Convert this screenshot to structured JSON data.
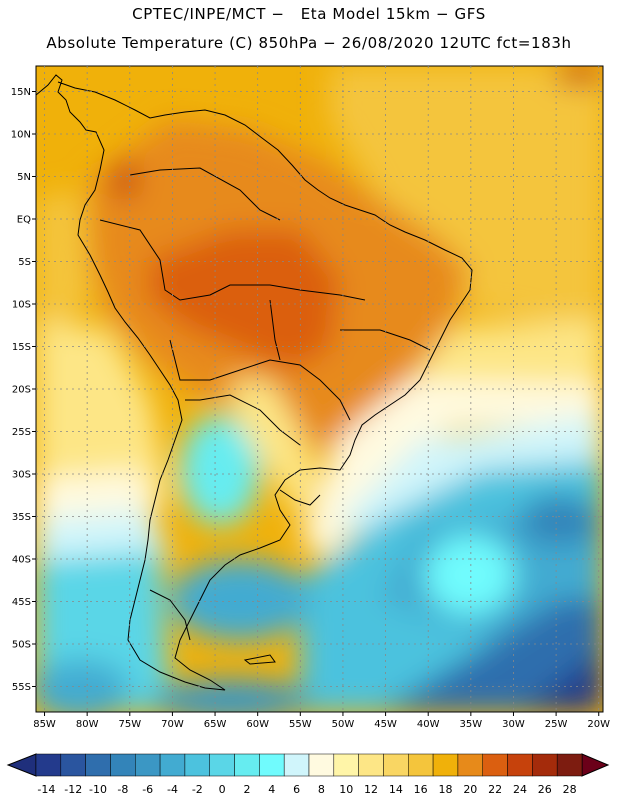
{
  "header": {
    "line1": "CPTEC/INPE/MCT −   Eta Model 15km − GFS",
    "line2": "Absolute Temperature (C) 850hPa − 26/08/2020 12UTC fct=183h"
  },
  "map": {
    "lat_labels": [
      {
        "label": "15N",
        "lat": 15
      },
      {
        "label": "10N",
        "lat": 10
      },
      {
        "label": "5N",
        "lat": 5
      },
      {
        "label": "EQ",
        "lat": 0
      },
      {
        "label": "5S",
        "lat": -5
      },
      {
        "label": "10S",
        "lat": -10
      },
      {
        "label": "15S",
        "lat": -15
      },
      {
        "label": "20S",
        "lat": -20
      },
      {
        "label": "25S",
        "lat": -25
      },
      {
        "label": "30S",
        "lat": -30
      },
      {
        "label": "35S",
        "lat": -35
      },
      {
        "label": "40S",
        "lat": -40
      },
      {
        "label": "45S",
        "lat": -45
      },
      {
        "label": "50S",
        "lat": -50
      },
      {
        "label": "55S",
        "lat": -55
      }
    ],
    "lon_labels": [
      {
        "label": "85W",
        "lon": -85
      },
      {
        "label": "80W",
        "lon": -80
      },
      {
        "label": "75W",
        "lon": -75
      },
      {
        "label": "70W",
        "lon": -70
      },
      {
        "label": "65W",
        "lon": -65
      },
      {
        "label": "60W",
        "lon": -60
      },
      {
        "label": "55W",
        "lon": -55
      },
      {
        "label": "50W",
        "lon": -50
      },
      {
        "label": "45W",
        "lon": -45
      },
      {
        "label": "40W",
        "lon": -40
      },
      {
        "label": "35W",
        "lon": -35
      },
      {
        "label": "30W",
        "lon": -30
      },
      {
        "label": "25W",
        "lon": -25
      },
      {
        "label": "20W",
        "lon": -20
      }
    ]
  },
  "colorbar": {
    "labels": [
      "-14",
      "-12",
      "-10",
      "-8",
      "-6",
      "-4",
      "-2",
      "0",
      "2",
      "4",
      "6",
      "8",
      "10",
      "12",
      "14",
      "16",
      "18",
      "20",
      "22",
      "24",
      "26",
      "28"
    ],
    "under_color": "#1f2f7c",
    "over_color": "#6b0019",
    "colors": [
      "#233a8c",
      "#2a559f",
      "#2f6ead",
      "#3384b9",
      "#3b97c4",
      "#42abd1",
      "#4cc2de",
      "#5ad6e7",
      "#66ecf0",
      "#70fbfd",
      "#d0f5fb",
      "#fffae0",
      "#fff5a8",
      "#fde686",
      "#f9d663",
      "#f4c53c",
      "#f0b10a",
      "#e78a1a",
      "#db5f10",
      "#c6420c",
      "#a42b0b",
      "#7d1c10"
    ]
  }
}
